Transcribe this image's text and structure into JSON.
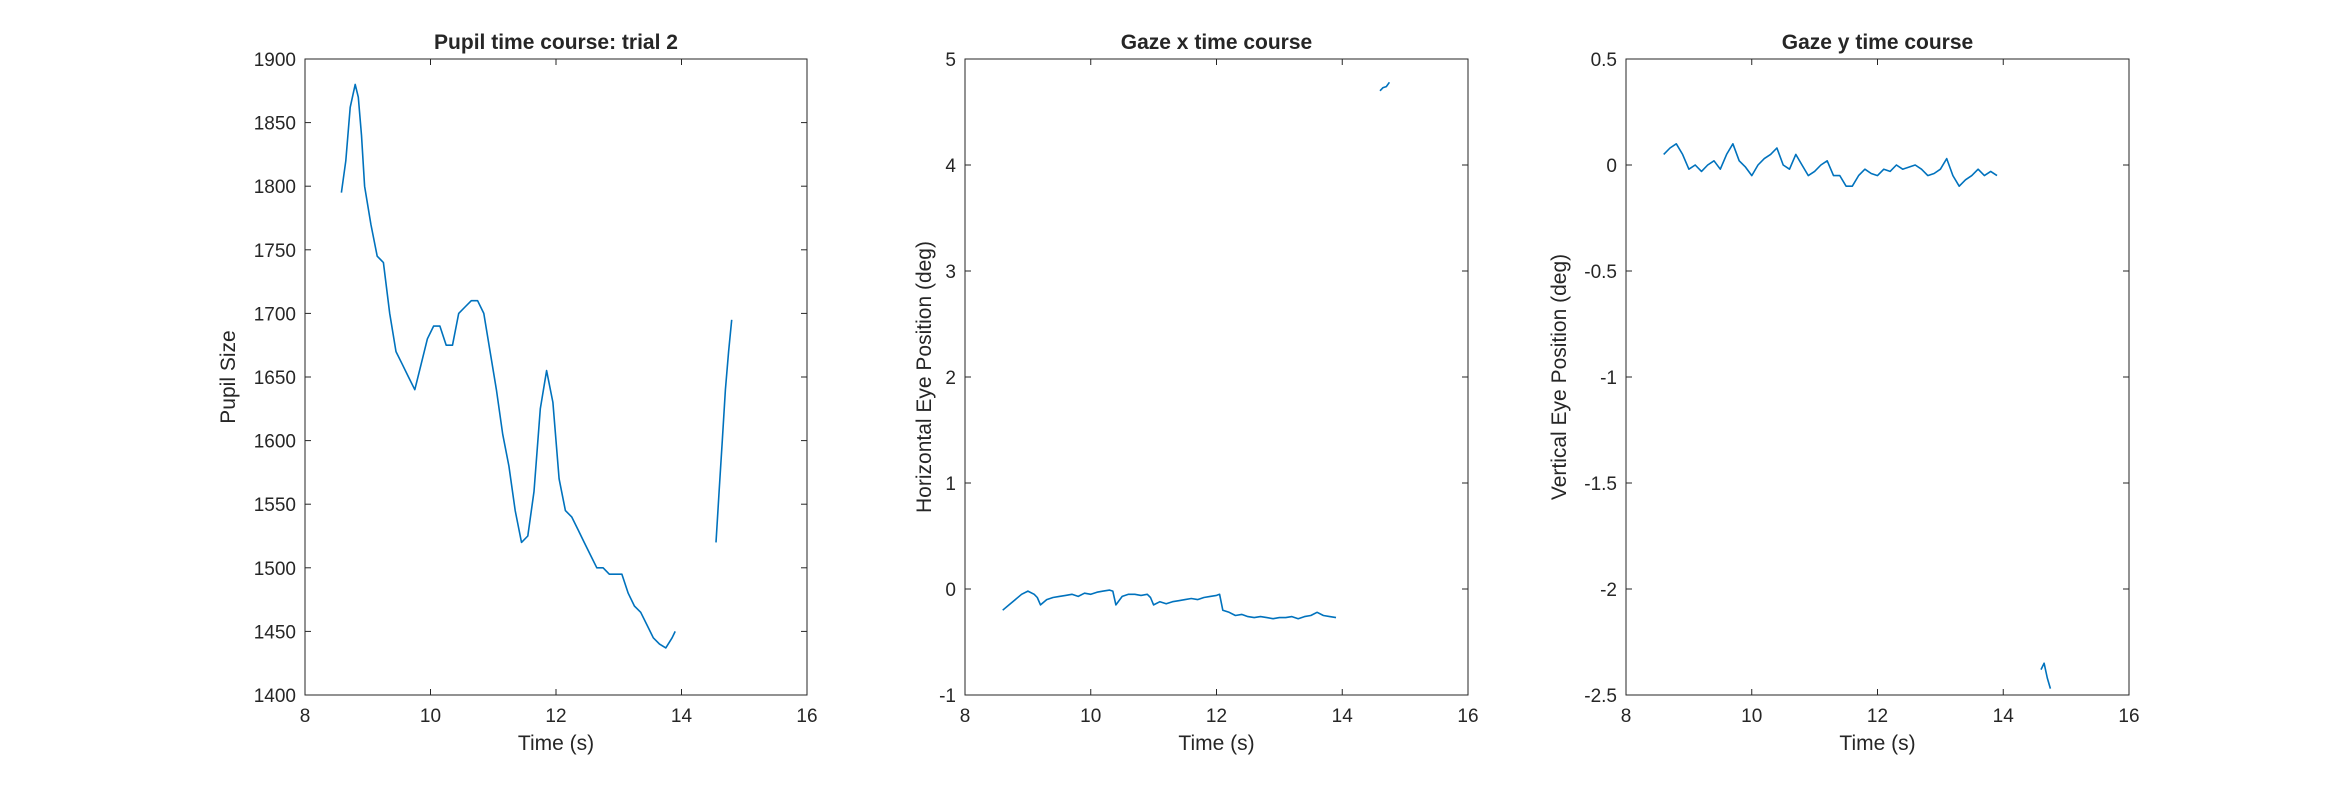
{
  "chart_data": [
    {
      "type": "line",
      "title": "Pupil time course: trial 2",
      "xlabel": "Time (s)",
      "ylabel": "Pupil Size",
      "xlim": [
        8,
        16
      ],
      "ylim": [
        1400,
        1900
      ],
      "xticks": [
        8,
        10,
        12,
        14,
        16
      ],
      "yticks": [
        1400,
        1450,
        1500,
        1550,
        1600,
        1650,
        1700,
        1750,
        1800,
        1850,
        1900
      ],
      "grid": false,
      "line_color": "#0072BD",
      "segments": [
        {
          "x": [
            8.58,
            8.65,
            8.72,
            8.8,
            8.85,
            8.9,
            8.95,
            9.05,
            9.15,
            9.25,
            9.35,
            9.45,
            9.55,
            9.65,
            9.75,
            9.85,
            9.95,
            10.05,
            10.15,
            10.25,
            10.35,
            10.45,
            10.55,
            10.65,
            10.75,
            10.85,
            10.95,
            11.05,
            11.15,
            11.25,
            11.35,
            11.45,
            11.55,
            11.65,
            11.75,
            11.85,
            11.95,
            12.05,
            12.15,
            12.25,
            12.35,
            12.45,
            12.55,
            12.65,
            12.75,
            12.85,
            12.95,
            13.05,
            13.15,
            13.25,
            13.35,
            13.45,
            13.55,
            13.65,
            13.75,
            13.85,
            13.9
          ],
          "y": [
            1795,
            1820,
            1862,
            1880,
            1870,
            1840,
            1800,
            1770,
            1745,
            1740,
            1700,
            1670,
            1660,
            1650,
            1640,
            1660,
            1680,
            1690,
            1690,
            1675,
            1675,
            1700,
            1705,
            1710,
            1710,
            1700,
            1670,
            1640,
            1605,
            1580,
            1545,
            1520,
            1525,
            1560,
            1625,
            1655,
            1630,
            1570,
            1545,
            1540,
            1530,
            1520,
            1510,
            1500,
            1500,
            1495,
            1495,
            1495,
            1480,
            1470,
            1465,
            1455,
            1445,
            1440,
            1437,
            1445,
            1450
          ]
        },
        {
          "x": [
            14.55,
            14.6,
            14.65,
            14.7,
            14.75,
            14.8
          ],
          "y": [
            1520,
            1560,
            1600,
            1640,
            1670,
            1695
          ]
        }
      ]
    },
    {
      "type": "line",
      "title": "Gaze x time course",
      "xlabel": "Time (s)",
      "ylabel": "Horizontal Eye Position (deg)",
      "xlim": [
        8,
        16
      ],
      "ylim": [
        -1,
        5
      ],
      "xticks": [
        8,
        10,
        12,
        14,
        16
      ],
      "yticks": [
        -1,
        0,
        1,
        2,
        3,
        4,
        5
      ],
      "grid": false,
      "line_color": "#0072BD",
      "segments": [
        {
          "x": [
            8.6,
            8.7,
            8.8,
            8.9,
            9.0,
            9.1,
            9.15,
            9.2,
            9.3,
            9.4,
            9.5,
            9.6,
            9.7,
            9.8,
            9.9,
            10.0,
            10.1,
            10.2,
            10.3,
            10.35,
            10.4,
            10.5,
            10.6,
            10.7,
            10.8,
            10.9,
            10.95,
            11.0,
            11.1,
            11.2,
            11.3,
            11.4,
            11.5,
            11.6,
            11.7,
            11.8,
            11.9,
            12.0,
            12.05,
            12.1,
            12.2,
            12.3,
            12.4,
            12.5,
            12.6,
            12.7,
            12.8,
            12.9,
            13.0,
            13.1,
            13.2,
            13.3,
            13.4,
            13.5,
            13.6,
            13.7,
            13.8,
            13.9
          ],
          "y": [
            -0.2,
            -0.15,
            -0.1,
            -0.05,
            -0.02,
            -0.05,
            -0.08,
            -0.15,
            -0.1,
            -0.08,
            -0.07,
            -0.06,
            -0.05,
            -0.07,
            -0.04,
            -0.05,
            -0.03,
            -0.02,
            -0.01,
            -0.02,
            -0.15,
            -0.07,
            -0.05,
            -0.05,
            -0.06,
            -0.05,
            -0.08,
            -0.15,
            -0.12,
            -0.14,
            -0.12,
            -0.11,
            -0.1,
            -0.09,
            -0.1,
            -0.08,
            -0.07,
            -0.06,
            -0.05,
            -0.2,
            -0.22,
            -0.25,
            -0.24,
            -0.26,
            -0.27,
            -0.26,
            -0.27,
            -0.28,
            -0.27,
            -0.27,
            -0.26,
            -0.28,
            -0.26,
            -0.25,
            -0.22,
            -0.25,
            -0.26,
            -0.27
          ]
        },
        {
          "x": [
            14.6,
            14.65,
            14.7,
            14.75
          ],
          "y": [
            4.7,
            4.73,
            4.74,
            4.78
          ]
        }
      ]
    },
    {
      "type": "line",
      "title": "Gaze y time course",
      "xlabel": "Time (s)",
      "ylabel": "Vertical Eye Position (deg)",
      "xlim": [
        8,
        16
      ],
      "ylim": [
        -2.5,
        0.5
      ],
      "xticks": [
        8,
        10,
        12,
        14,
        16
      ],
      "yticks": [
        -2.5,
        -2,
        -1.5,
        -1,
        -0.5,
        0,
        0.5
      ],
      "grid": false,
      "line_color": "#0072BD",
      "segments": [
        {
          "x": [
            8.6,
            8.7,
            8.8,
            8.9,
            9.0,
            9.1,
            9.2,
            9.3,
            9.4,
            9.5,
            9.6,
            9.7,
            9.8,
            9.9,
            10.0,
            10.1,
            10.2,
            10.3,
            10.4,
            10.5,
            10.6,
            10.7,
            10.8,
            10.9,
            11.0,
            11.1,
            11.2,
            11.3,
            11.4,
            11.5,
            11.6,
            11.7,
            11.8,
            11.9,
            12.0,
            12.1,
            12.2,
            12.3,
            12.4,
            12.5,
            12.6,
            12.7,
            12.8,
            12.9,
            13.0,
            13.1,
            13.2,
            13.3,
            13.4,
            13.5,
            13.6,
            13.7,
            13.8,
            13.9
          ],
          "y": [
            0.05,
            0.08,
            0.1,
            0.05,
            -0.02,
            0.0,
            -0.03,
            0.0,
            0.02,
            -0.02,
            0.05,
            0.1,
            0.02,
            -0.01,
            -0.05,
            0.0,
            0.03,
            0.05,
            0.08,
            0.0,
            -0.02,
            0.05,
            0.0,
            -0.05,
            -0.03,
            0.0,
            0.02,
            -0.05,
            -0.05,
            -0.1,
            -0.1,
            -0.05,
            -0.02,
            -0.04,
            -0.05,
            -0.02,
            -0.03,
            0.0,
            -0.02,
            -0.01,
            0.0,
            -0.02,
            -0.05,
            -0.04,
            -0.02,
            0.03,
            -0.05,
            -0.1,
            -0.07,
            -0.05,
            -0.02,
            -0.05,
            -0.03,
            -0.05
          ]
        },
        {
          "x": [
            14.6,
            14.65,
            14.7,
            14.75
          ],
          "y": [
            -2.38,
            -2.35,
            -2.42,
            -2.47
          ]
        }
      ]
    }
  ]
}
